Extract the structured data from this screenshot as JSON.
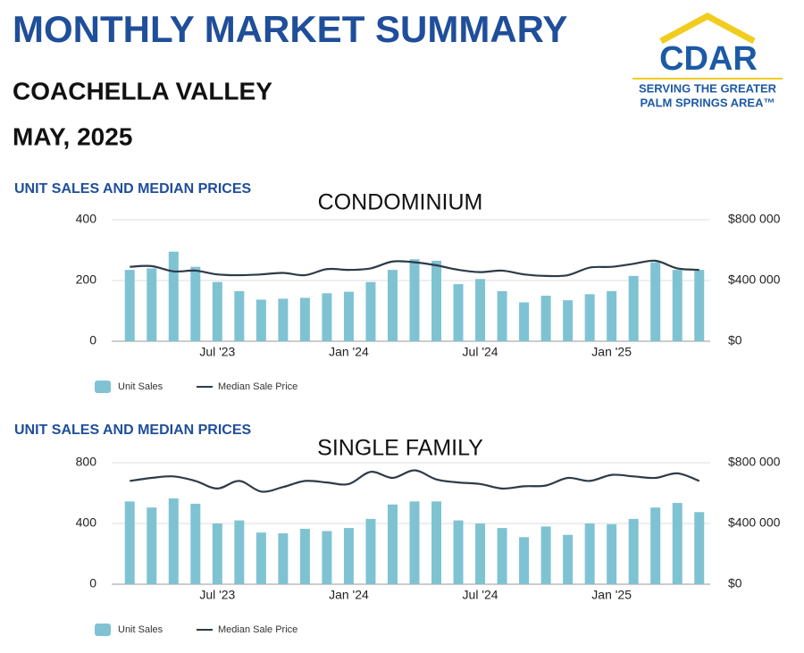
{
  "header": {
    "title": "MONTHLY MARKET SUMMARY",
    "region": "COACHELLA VALLEY",
    "date": "MAY, 2025",
    "logo": "CDAR",
    "tagline_1": "SERVING THE GREATER",
    "tagline_2": "PALM SPRINGS AREA™"
  },
  "chart_data": [
    {
      "type": "bar",
      "section": "UNIT SALES AND MEDIAN PRICES",
      "title": "CONDOMINIUM",
      "categories": [
        null,
        null,
        null,
        null,
        "Jul '23",
        null,
        null,
        null,
        null,
        null,
        "Jan '24",
        null,
        null,
        null,
        null,
        null,
        "Jul '24",
        null,
        null,
        null,
        null,
        null,
        "Jan '25",
        null,
        null,
        null,
        null
      ],
      "series": [
        {
          "name": "Unit Sales",
          "type": "bar",
          "color": "#7fc3d3",
          "values": [
            235,
            240,
            295,
            245,
            195,
            165,
            137,
            140,
            143,
            158,
            163,
            195,
            235,
            270,
            265,
            188,
            205,
            165,
            128,
            150,
            135,
            155,
            165,
            215,
            260,
            235,
            235
          ]
        },
        {
          "name": "Median Sale Price",
          "type": "line",
          "axis": "y2",
          "color": "#2e3b47",
          "values": [
            490000,
            495000,
            460000,
            465000,
            440000,
            435000,
            440000,
            450000,
            435000,
            475000,
            470000,
            480000,
            525000,
            520000,
            500000,
            470000,
            455000,
            465000,
            440000,
            430000,
            435000,
            485000,
            490000,
            510000,
            530000,
            480000,
            470000
          ]
        }
      ],
      "ylim": [
        0,
        400
      ],
      "yticks": [
        0,
        200,
        400
      ],
      "y2lim": [
        0,
        800000
      ],
      "y2ticks": [
        {
          "value": 0,
          "label": "$0"
        },
        {
          "value": 400000,
          "label": "$400 000"
        },
        {
          "value": 800000,
          "label": "$800 000"
        }
      ],
      "grid": true
    },
    {
      "type": "bar",
      "section": "UNIT SALES AND MEDIAN PRICES",
      "title": "SINGLE FAMILY",
      "categories": [
        null,
        null,
        null,
        null,
        "Jul '23",
        null,
        null,
        null,
        null,
        null,
        "Jan '24",
        null,
        null,
        null,
        null,
        null,
        "Jul '24",
        null,
        null,
        null,
        null,
        null,
        "Jan '25",
        null,
        null,
        null,
        null
      ],
      "series": [
        {
          "name": "Unit Sales",
          "type": "bar",
          "color": "#7fc3d3",
          "values": [
            545,
            505,
            565,
            530,
            400,
            420,
            340,
            335,
            365,
            350,
            370,
            430,
            525,
            545,
            545,
            420,
            400,
            370,
            310,
            380,
            325,
            400,
            395,
            430,
            505,
            535,
            475
          ]
        },
        {
          "name": "Median Sale Price",
          "type": "line",
          "axis": "y2",
          "color": "#2e3b47",
          "values": [
            680000,
            700000,
            710000,
            680000,
            630000,
            680000,
            610000,
            640000,
            680000,
            670000,
            660000,
            740000,
            700000,
            750000,
            690000,
            670000,
            660000,
            630000,
            645000,
            650000,
            700000,
            680000,
            720000,
            710000,
            700000,
            730000,
            680000
          ]
        }
      ],
      "ylim": [
        0,
        800
      ],
      "yticks": [
        0,
        400,
        800
      ],
      "y2lim": [
        0,
        800000
      ],
      "y2ticks": [
        {
          "value": 0,
          "label": "$0"
        },
        {
          "value": 400000,
          "label": "$400 000"
        },
        {
          "value": 800000,
          "label": "$800 000"
        }
      ],
      "grid": true
    }
  ]
}
